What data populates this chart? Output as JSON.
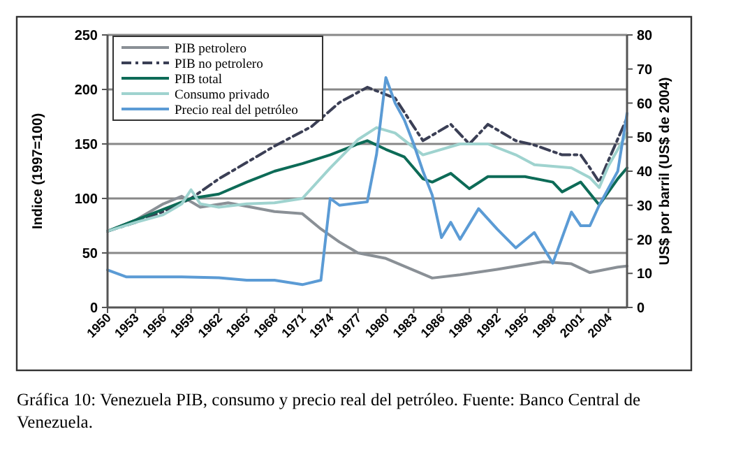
{
  "chart_data": {
    "type": "line",
    "ylabel": "Indice (1997=100)",
    "y2label": "US$ por barril (US$ de 2004)",
    "annotations": [
      "Gráfica 10: Venezuela PIB, consumo y precio real del petróleo. Fuente: Banco Central de Venezuela."
    ],
    "xlim": [
      1950,
      2006
    ],
    "xticks": [
      1950,
      1953,
      1956,
      1959,
      1962,
      1965,
      1968,
      1971,
      1974,
      1977,
      1980,
      1983,
      1986,
      1989,
      1992,
      1995,
      1998,
      2001,
      2004
    ],
    "ylim": [
      0,
      250
    ],
    "yticks": [
      0,
      50,
      100,
      150,
      200,
      250
    ],
    "y2lim": [
      0,
      80
    ],
    "y2ticks": [
      0,
      10,
      20,
      30,
      40,
      50,
      60,
      70,
      80
    ],
    "grid": "y",
    "legend": "top left",
    "marker": "none",
    "series": [
      {
        "name": "PIB petrolero",
        "color": "#8a9096",
        "line_style": "solid",
        "x": [
          1950,
          1953,
          1956,
          1958,
          1960,
          1963,
          1968,
          1971,
          1973,
          1975,
          1977,
          1980,
          1985,
          1988,
          1992,
          1997,
          2000,
          2002,
          2005,
          2006
        ],
        "values": [
          70,
          80,
          95,
          102,
          92,
          96,
          88,
          86,
          72,
          60,
          50,
          45,
          27,
          30,
          35,
          42,
          40,
          32,
          37,
          38
        ]
      },
      {
        "name": "PIB no petrolero",
        "color": "#3b3f55",
        "line_style": "dashed",
        "x": [
          1950,
          1953,
          1956,
          1959,
          1962,
          1964,
          1968,
          1972,
          1975,
          1978,
          1981,
          1983,
          1984,
          1987,
          1989,
          1991,
          1994,
          1996,
          1999,
          2001,
          2002,
          2003,
          2004,
          2006
        ],
        "values": [
          70,
          78,
          88,
          100,
          118,
          128,
          148,
          166,
          188,
          202,
          192,
          166,
          153,
          168,
          150,
          168,
          153,
          149,
          140,
          140,
          128,
          115,
          135,
          174
        ]
      },
      {
        "name": "PIB total",
        "color": "#0d6b57",
        "line_style": "solid",
        "x": [
          1950,
          1953,
          1956,
          1959,
          1962,
          1965,
          1968,
          1971,
          1974,
          1977,
          1978,
          1980,
          1982,
          1983,
          1984,
          1985,
          1987,
          1989,
          1991,
          1995,
          1998,
          1999,
          2001,
          2003,
          2005,
          2006
        ],
        "values": [
          70,
          80,
          90,
          100,
          104,
          115,
          125,
          132,
          140,
          150,
          153,
          145,
          138,
          128,
          118,
          115,
          123,
          109,
          120,
          120,
          115,
          106,
          115,
          94,
          118,
          128
        ]
      },
      {
        "name": "Consumo privado",
        "color": "#9fd3cf",
        "line_style": "solid",
        "x": [
          1950,
          1953,
          1956,
          1958,
          1959,
          1960,
          1962,
          1965,
          1968,
          1971,
          1974,
          1977,
          1979,
          1981,
          1984,
          1988,
          1991,
          1994,
          1996,
          2000,
          2002,
          2003,
          2004,
          2006
        ],
        "values": [
          70,
          78,
          85,
          95,
          108,
          95,
          92,
          95,
          96,
          100,
          128,
          154,
          165,
          160,
          140,
          150,
          150,
          140,
          131,
          128,
          119,
          110,
          130,
          160
        ]
      },
      {
        "name": "Precio real del petróleo",
        "color": "#5b9bd5",
        "line_style": "solid",
        "axis": "y2",
        "x": [
          1950,
          1952,
          1958,
          1962,
          1965,
          1968,
          1971,
          1973,
          1974,
          1975,
          1978,
          1979,
          1980,
          1981,
          1982,
          1983,
          1984,
          1985,
          1986,
          1987,
          1988,
          1990,
          1992,
          1994,
          1996,
          1998,
          2000,
          2001,
          2002,
          2003,
          2005,
          2006
        ],
        "values": [
          11,
          9,
          9,
          8.7,
          8,
          8,
          6.7,
          8,
          32,
          30,
          31,
          45,
          67.5,
          60,
          55,
          48,
          40,
          33,
          20.5,
          25,
          20,
          29,
          23,
          17.5,
          22,
          13,
          28,
          24,
          24,
          30,
          40,
          57
        ]
      }
    ]
  }
}
